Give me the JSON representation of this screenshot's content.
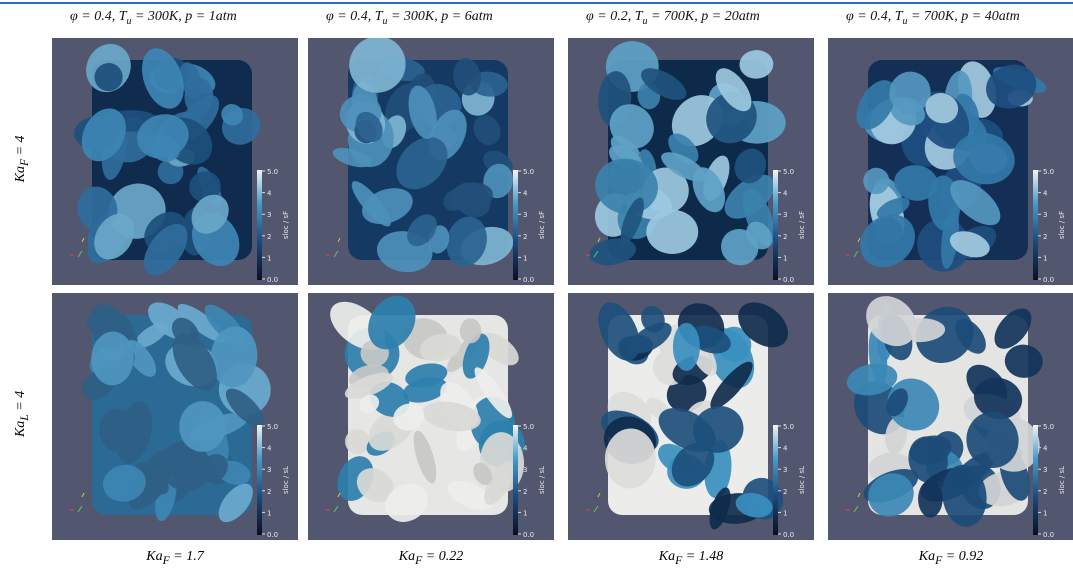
{
  "columns": [
    {
      "pre": "φ = 0.4, T",
      "sub": "u",
      "post": " = 300K, p = 1atm"
    },
    {
      "pre": "φ = 0.4, T",
      "sub": "u",
      "post": " = 300K, p = 6atm"
    },
    {
      "pre": "φ = 0.2, T",
      "sub": "u",
      "post": " = 700K, p = 20atm"
    },
    {
      "pre": "φ = 0.4, T",
      "sub": "u",
      "post": " = 700K, p = 40atm"
    }
  ],
  "rows": [
    {
      "pre": "Ka",
      "sub": "F",
      "post": " = 4",
      "colorbar_label": "sloc / sF"
    },
    {
      "pre": "Ka",
      "sub": "L",
      "post": " = 4",
      "colorbar_label": "sloc / sL"
    }
  ],
  "colorbar_ticks": [
    "5.0",
    "4",
    "3",
    "2",
    "1",
    "0.0"
  ],
  "bottom_labels": [
    {
      "pre": "Ka",
      "sub": "F",
      "post": " = 1.7"
    },
    {
      "pre": "Ka",
      "sub": "F",
      "post": " = 0.22"
    },
    {
      "pre": "Ka",
      "sub": "F",
      "post": " = 1.48"
    },
    {
      "pre": "Ka",
      "sub": "F",
      "post": " = 0.92"
    }
  ]
}
